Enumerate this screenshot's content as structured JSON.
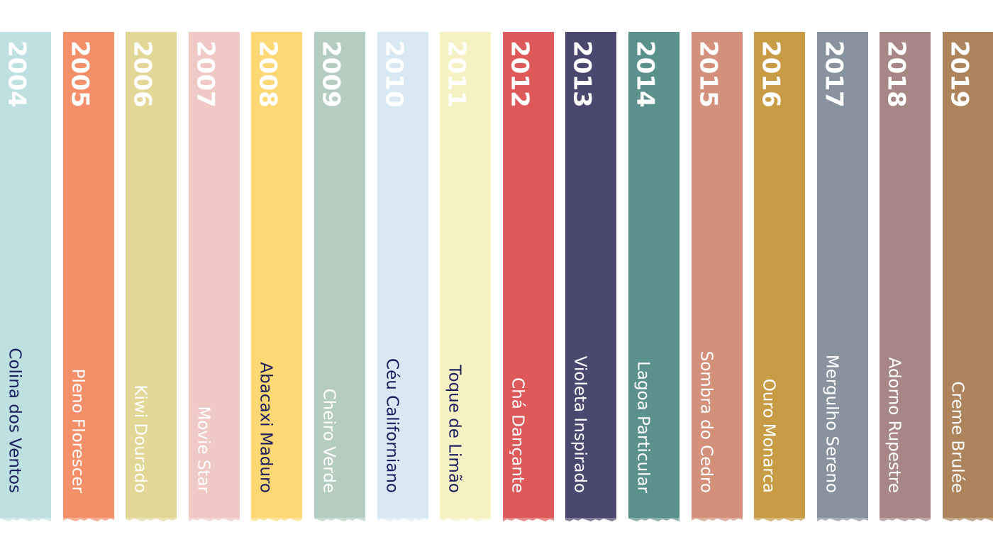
{
  "strips": [
    {
      "year": "2004",
      "name": "Colina dos Ventos",
      "color": "#bfe0e0",
      "text_color": "#1b1f5e"
    },
    {
      "year": "2005",
      "name": "Pleno Florescer",
      "color": "#f3906a",
      "text_color": "#ffffff"
    },
    {
      "year": "2006",
      "name": "Kiwi Dourado",
      "color": "#e2d796",
      "text_color": "#ffffff"
    },
    {
      "year": "2007",
      "name": "Movie Star",
      "color": "#f0c8c4",
      "text_color": "#ffffff"
    },
    {
      "year": "2008",
      "name": "Abacaxi Maduro",
      "color": "#fdd875",
      "text_color": "#1b1f5e"
    },
    {
      "year": "2009",
      "name": "Cheiro Verde",
      "color": "#b5cdc0",
      "text_color": "#ffffff"
    },
    {
      "year": "2010",
      "name": "Céu Californiano",
      "color": "#d8e9f4",
      "text_color": "#1b1f5e"
    },
    {
      "year": "2011",
      "name": "Toque de Limão",
      "color": "#f5f1c2",
      "text_color": "#1b1f5e"
    },
    {
      "year": "2012",
      "name": "Chá Dançante",
      "color": "#de5a5a",
      "text_color": "#ffffff"
    },
    {
      "year": "2013",
      "name": "Violeta Inspirado",
      "color": "#4b4870",
      "text_color": "#ffffff"
    },
    {
      "year": "2014",
      "name": "Lagoa Particular",
      "color": "#5b918c",
      "text_color": "#ffffff"
    },
    {
      "year": "2015",
      "name": "Sombra do Cedro",
      "color": "#d3917b",
      "text_color": "#ffffff"
    },
    {
      "year": "2016",
      "name": "Ouro Monarca",
      "color": "#c79c45",
      "text_color": "#ffffff"
    },
    {
      "year": "2017",
      "name": "Mergulho Sereno",
      "color": "#8993a0",
      "text_color": "#ffffff"
    },
    {
      "year": "2018",
      "name": "Adorno Rupestre",
      "color": "#a78786",
      "text_color": "#ffffff"
    },
    {
      "year": "2019",
      "name": "Creme Brulée",
      "color": "#ad845c",
      "text_color": "#ffffff"
    }
  ]
}
